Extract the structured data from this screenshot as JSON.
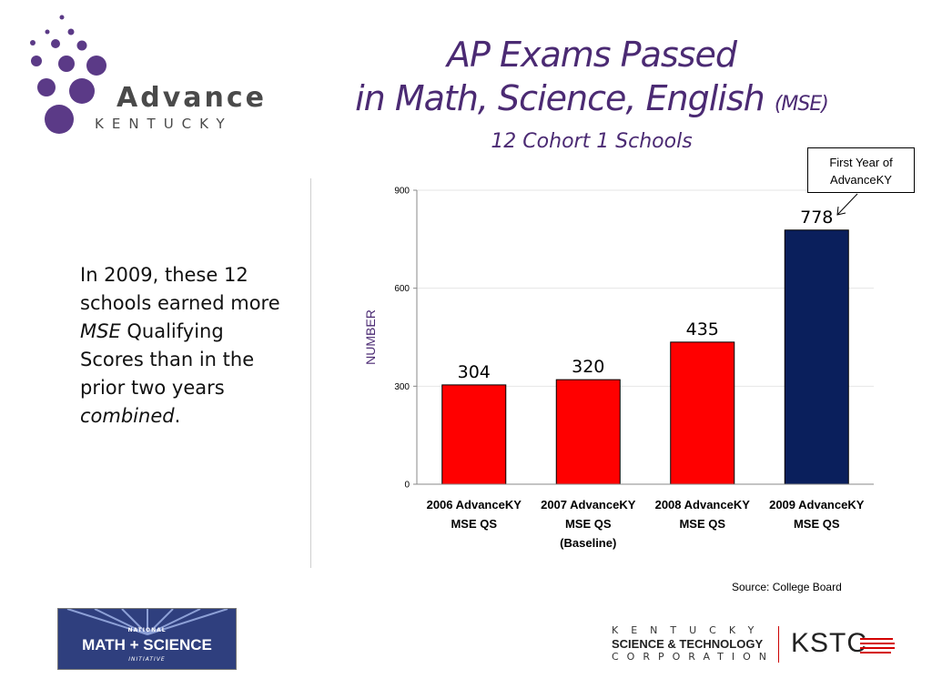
{
  "header": {
    "title_line1": "AP Exams Passed",
    "title_line2": "in Math, Science, English",
    "title_suffix": "(MSE)",
    "subtitle": "12 Cohort 1 Schools"
  },
  "logo": {
    "word": "Advance",
    "sub": "KENTUCKY"
  },
  "left_text": {
    "part1": "In 2009, these 12 schools earned more ",
    "em1": "MSE",
    "part2": " Qualifying Scores than in the prior two years ",
    "em2": "combined",
    "part3": "."
  },
  "callout": {
    "line1": "First Year of",
    "line2": "AdvanceKY"
  },
  "source": "Source: College Board",
  "footer": {
    "nmsi_top": "NATIONAL",
    "nmsi_main": "MATH + SCIENCE",
    "nmsi_bottom": "INITIATIVE",
    "kstc_top": "KENTUCKY",
    "kstc_mid": "SCIENCE & TECHNOLOGY",
    "kstc_bottom": "CORPORATION",
    "kstc_logo": "KSTC"
  },
  "colors": {
    "title": "#4b2a73",
    "bar_red": "#ff0000",
    "bar_navy": "#0a1f5c",
    "gridline": "#e6e6e6"
  },
  "chart_data": {
    "type": "bar",
    "categories": [
      [
        "2006 AdvanceKY",
        "MSE QS"
      ],
      [
        "2007 AdvanceKY",
        "MSE QS",
        "(Baseline)"
      ],
      [
        "2008 AdvanceKY",
        "MSE QS"
      ],
      [
        "2009 AdvanceKY",
        "MSE QS"
      ]
    ],
    "values": [
      304,
      320,
      435,
      778
    ],
    "bar_colors": [
      "#ff0000",
      "#ff0000",
      "#ff0000",
      "#0a1f5c"
    ],
    "ylabel": "NUMBER",
    "ylim": [
      0,
      900
    ],
    "yticks": [
      0,
      300,
      600,
      900
    ],
    "grid": true
  }
}
